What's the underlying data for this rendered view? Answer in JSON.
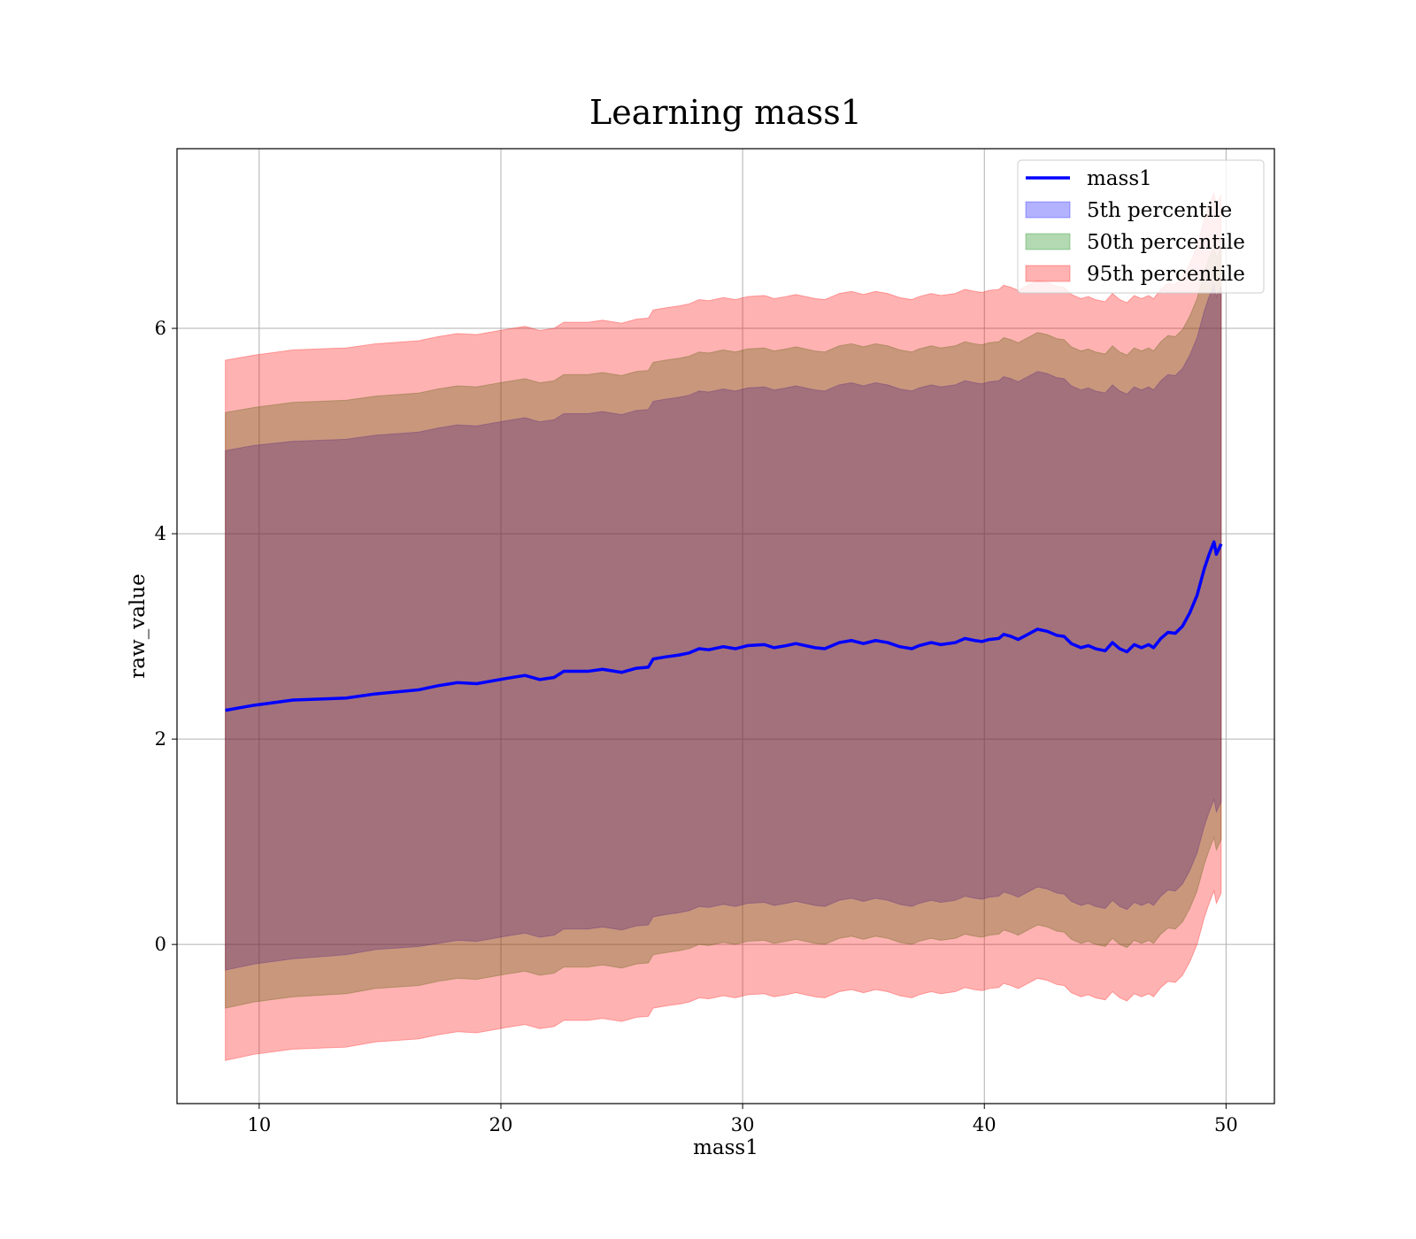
{
  "chart_data": {
    "type": "area",
    "title": "Learning mass1",
    "xlabel": "mass1",
    "ylabel": "raw_value",
    "xlim": [
      6.6,
      52.0
    ],
    "ylim": [
      -1.55,
      7.75
    ],
    "xticks": [
      10,
      20,
      30,
      40,
      50
    ],
    "yticks": [
      0,
      2,
      4,
      6
    ],
    "grid": true,
    "legend_position": "upper right",
    "x": [
      8.6,
      9.8,
      11.4,
      13.6,
      14.8,
      16.6,
      17.4,
      18.2,
      19.0,
      20.2,
      21.0,
      21.6,
      22.2,
      22.6,
      23.6,
      24.2,
      25.0,
      25.6,
      26.1,
      26.3,
      26.8,
      27.4,
      27.8,
      28.2,
      28.6,
      29.2,
      29.7,
      30.2,
      30.9,
      31.3,
      31.8,
      32.2,
      33.0,
      33.4,
      34.0,
      34.5,
      35.0,
      35.5,
      36.0,
      36.5,
      37.0,
      37.3,
      37.8,
      38.2,
      38.8,
      39.2,
      39.6,
      39.9,
      40.2,
      40.6,
      40.8,
      41.1,
      41.4,
      41.8,
      42.2,
      42.6,
      43.0,
      43.3,
      43.6,
      44.0,
      44.3,
      44.6,
      45.0,
      45.3,
      45.6,
      45.9,
      46.2,
      46.5,
      46.8,
      47.0,
      47.3,
      47.6,
      47.9,
      48.2,
      48.5,
      48.8,
      49.1,
      49.3,
      49.5,
      49.6,
      49.8
    ],
    "series": [
      {
        "name": "mass1",
        "kind": "line",
        "color": "#0000ff",
        "values": [
          2.28,
          2.33,
          2.38,
          2.4,
          2.44,
          2.48,
          2.52,
          2.55,
          2.54,
          2.59,
          2.62,
          2.58,
          2.6,
          2.66,
          2.66,
          2.68,
          2.65,
          2.69,
          2.7,
          2.78,
          2.8,
          2.82,
          2.84,
          2.88,
          2.87,
          2.9,
          2.88,
          2.91,
          2.92,
          2.89,
          2.91,
          2.93,
          2.89,
          2.88,
          2.94,
          2.96,
          2.93,
          2.96,
          2.94,
          2.9,
          2.88,
          2.91,
          2.94,
          2.92,
          2.94,
          2.98,
          2.96,
          2.95,
          2.97,
          2.98,
          3.02,
          3.0,
          2.97,
          3.02,
          3.07,
          3.05,
          3.01,
          3.0,
          2.93,
          2.89,
          2.91,
          2.88,
          2.86,
          2.94,
          2.88,
          2.85,
          2.92,
          2.89,
          2.92,
          2.89,
          2.98,
          3.04,
          3.03,
          3.1,
          3.23,
          3.4,
          3.66,
          3.8,
          3.92,
          3.8,
          3.9
        ]
      },
      {
        "name": "5th percentile",
        "kind": "band",
        "color": "#0000ff",
        "lower": [
          -0.25,
          -0.19,
          -0.14,
          -0.1,
          -0.05,
          -0.02,
          0.01,
          0.04,
          0.03,
          0.08,
          0.11,
          0.07,
          0.09,
          0.15,
          0.15,
          0.17,
          0.14,
          0.18,
          0.19,
          0.27,
          0.29,
          0.31,
          0.33,
          0.37,
          0.36,
          0.39,
          0.37,
          0.4,
          0.41,
          0.38,
          0.4,
          0.42,
          0.38,
          0.37,
          0.43,
          0.45,
          0.42,
          0.45,
          0.43,
          0.39,
          0.37,
          0.4,
          0.43,
          0.41,
          0.43,
          0.47,
          0.45,
          0.44,
          0.46,
          0.47,
          0.51,
          0.49,
          0.46,
          0.51,
          0.56,
          0.54,
          0.5,
          0.49,
          0.42,
          0.38,
          0.4,
          0.37,
          0.35,
          0.43,
          0.37,
          0.34,
          0.41,
          0.38,
          0.41,
          0.38,
          0.47,
          0.53,
          0.52,
          0.59,
          0.72,
          0.89,
          1.15,
          1.29,
          1.41,
          1.29,
          1.39
        ],
        "upper": [
          4.81,
          4.86,
          4.9,
          4.92,
          4.96,
          4.99,
          5.03,
          5.06,
          5.05,
          5.1,
          5.13,
          5.09,
          5.11,
          5.17,
          5.17,
          5.19,
          5.16,
          5.2,
          5.21,
          5.29,
          5.31,
          5.33,
          5.35,
          5.39,
          5.38,
          5.41,
          5.39,
          5.42,
          5.43,
          5.4,
          5.42,
          5.44,
          5.4,
          5.39,
          5.45,
          5.47,
          5.44,
          5.47,
          5.45,
          5.41,
          5.39,
          5.42,
          5.45,
          5.43,
          5.45,
          5.49,
          5.47,
          5.46,
          5.48,
          5.49,
          5.53,
          5.51,
          5.48,
          5.53,
          5.58,
          5.56,
          5.52,
          5.51,
          5.44,
          5.4,
          5.42,
          5.39,
          5.37,
          5.45,
          5.39,
          5.36,
          5.43,
          5.4,
          5.43,
          5.4,
          5.49,
          5.55,
          5.54,
          5.61,
          5.74,
          5.91,
          6.17,
          6.31,
          6.43,
          6.31,
          6.41
        ]
      },
      {
        "name": "50th percentile",
        "kind": "band",
        "color": "#008000",
        "lower": [
          -0.62,
          -0.56,
          -0.51,
          -0.48,
          -0.43,
          -0.4,
          -0.36,
          -0.33,
          -0.34,
          -0.29,
          -0.26,
          -0.3,
          -0.28,
          -0.22,
          -0.22,
          -0.2,
          -0.23,
          -0.19,
          -0.18,
          -0.1,
          -0.08,
          -0.06,
          -0.04,
          0.0,
          -0.01,
          0.02,
          0.0,
          0.03,
          0.04,
          0.01,
          0.03,
          0.05,
          0.01,
          0.0,
          0.06,
          0.08,
          0.05,
          0.08,
          0.06,
          0.02,
          0.0,
          0.03,
          0.06,
          0.04,
          0.06,
          0.1,
          0.08,
          0.07,
          0.09,
          0.1,
          0.14,
          0.12,
          0.09,
          0.14,
          0.19,
          0.17,
          0.13,
          0.12,
          0.05,
          0.01,
          0.03,
          0.0,
          -0.02,
          0.06,
          0.0,
          -0.03,
          0.04,
          0.01,
          0.04,
          0.01,
          0.1,
          0.16,
          0.15,
          0.22,
          0.35,
          0.52,
          0.78,
          0.92,
          1.04,
          0.92,
          1.02
        ],
        "upper": [
          5.18,
          5.23,
          5.28,
          5.3,
          5.34,
          5.37,
          5.41,
          5.44,
          5.43,
          5.48,
          5.51,
          5.47,
          5.49,
          5.55,
          5.55,
          5.57,
          5.54,
          5.58,
          5.59,
          5.67,
          5.69,
          5.71,
          5.73,
          5.77,
          5.76,
          5.79,
          5.77,
          5.8,
          5.81,
          5.78,
          5.8,
          5.82,
          5.78,
          5.77,
          5.83,
          5.85,
          5.82,
          5.85,
          5.83,
          5.79,
          5.77,
          5.8,
          5.83,
          5.81,
          5.83,
          5.87,
          5.85,
          5.84,
          5.86,
          5.87,
          5.91,
          5.89,
          5.86,
          5.91,
          5.96,
          5.94,
          5.9,
          5.89,
          5.82,
          5.78,
          5.8,
          5.77,
          5.75,
          5.83,
          5.77,
          5.74,
          5.81,
          5.78,
          5.81,
          5.78,
          5.87,
          5.93,
          5.92,
          5.99,
          6.12,
          6.29,
          6.55,
          6.69,
          6.81,
          6.69,
          6.79
        ]
      },
      {
        "name": "95th percentile",
        "kind": "band",
        "color": "#ff0000",
        "lower": [
          -1.13,
          -1.07,
          -1.02,
          -1.0,
          -0.95,
          -0.92,
          -0.88,
          -0.85,
          -0.86,
          -0.81,
          -0.78,
          -0.82,
          -0.8,
          -0.74,
          -0.74,
          -0.72,
          -0.75,
          -0.71,
          -0.7,
          -0.62,
          -0.6,
          -0.58,
          -0.56,
          -0.52,
          -0.53,
          -0.5,
          -0.52,
          -0.49,
          -0.48,
          -0.51,
          -0.49,
          -0.47,
          -0.51,
          -0.52,
          -0.46,
          -0.44,
          -0.47,
          -0.44,
          -0.46,
          -0.5,
          -0.52,
          -0.49,
          -0.46,
          -0.48,
          -0.46,
          -0.42,
          -0.44,
          -0.45,
          -0.43,
          -0.42,
          -0.38,
          -0.4,
          -0.43,
          -0.38,
          -0.33,
          -0.35,
          -0.39,
          -0.4,
          -0.47,
          -0.51,
          -0.49,
          -0.52,
          -0.54,
          -0.46,
          -0.52,
          -0.55,
          -0.48,
          -0.51,
          -0.48,
          -0.51,
          -0.42,
          -0.36,
          -0.37,
          -0.3,
          -0.17,
          0.0,
          0.26,
          0.4,
          0.52,
          0.4,
          0.5
        ],
        "upper": [
          5.69,
          5.74,
          5.79,
          5.81,
          5.85,
          5.88,
          5.92,
          5.95,
          5.94,
          5.99,
          6.02,
          5.98,
          6.0,
          6.06,
          6.06,
          6.08,
          6.05,
          6.09,
          6.1,
          6.18,
          6.2,
          6.22,
          6.24,
          6.28,
          6.27,
          6.3,
          6.28,
          6.31,
          6.32,
          6.29,
          6.31,
          6.33,
          6.29,
          6.28,
          6.34,
          6.36,
          6.33,
          6.36,
          6.34,
          6.3,
          6.28,
          6.31,
          6.34,
          6.32,
          6.34,
          6.38,
          6.36,
          6.35,
          6.37,
          6.38,
          6.42,
          6.4,
          6.37,
          6.42,
          6.47,
          6.45,
          6.41,
          6.4,
          6.33,
          6.29,
          6.31,
          6.28,
          6.26,
          6.34,
          6.28,
          6.25,
          6.32,
          6.29,
          6.32,
          6.29,
          6.38,
          6.44,
          6.43,
          6.5,
          6.63,
          6.8,
          7.06,
          7.2,
          7.32,
          7.2,
          7.3
        ]
      }
    ]
  }
}
